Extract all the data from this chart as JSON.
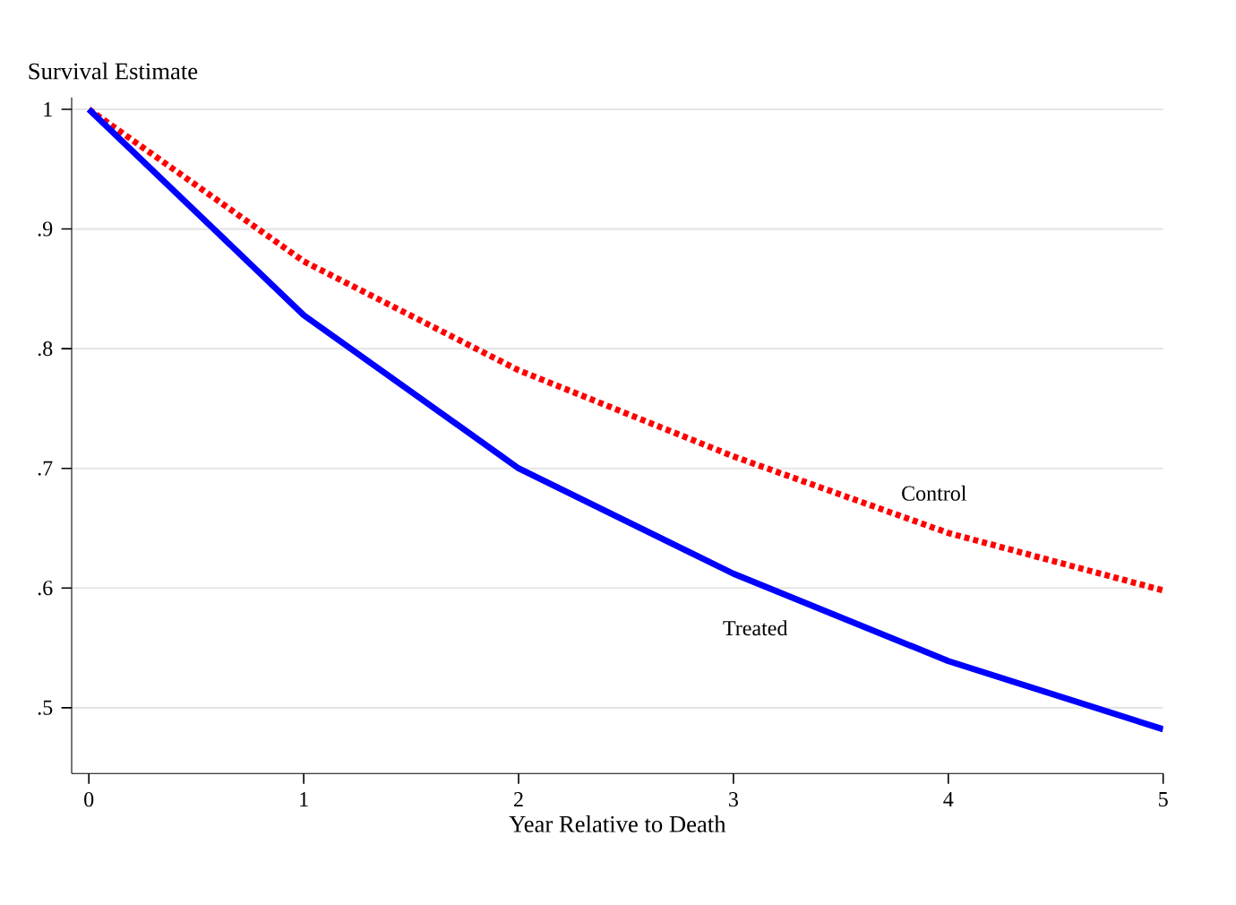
{
  "chart_data": {
    "type": "line",
    "ylabel": "Survival Estimate",
    "xlabel": "Year Relative to Death",
    "x": [
      0,
      1,
      2,
      3,
      4,
      5
    ],
    "series": [
      {
        "name": "Control",
        "color": "#ff0000",
        "line_style": "dotted",
        "values": [
          1.0,
          0.873,
          0.782,
          0.71,
          0.646,
          0.598
        ]
      },
      {
        "name": "Treated",
        "color": "#0000ff",
        "line_style": "solid",
        "values": [
          1.0,
          0.828,
          0.7,
          0.612,
          0.539,
          0.482
        ]
      }
    ],
    "xlim": [
      -0.08,
      5
    ],
    "xticks": [
      0,
      1,
      2,
      3,
      4,
      5
    ],
    "ylim": [
      0.445,
      1.01
    ],
    "yticks": [
      {
        "value": 0.5,
        "label": ".5"
      },
      {
        "value": 0.6,
        "label": ".6"
      },
      {
        "value": 0.7,
        "label": ".7"
      },
      {
        "value": 0.8,
        "label": ".8"
      },
      {
        "value": 0.9,
        "label": ".9"
      },
      {
        "value": 1,
        "label": "1"
      }
    ],
    "grid": "y",
    "legend": false
  }
}
